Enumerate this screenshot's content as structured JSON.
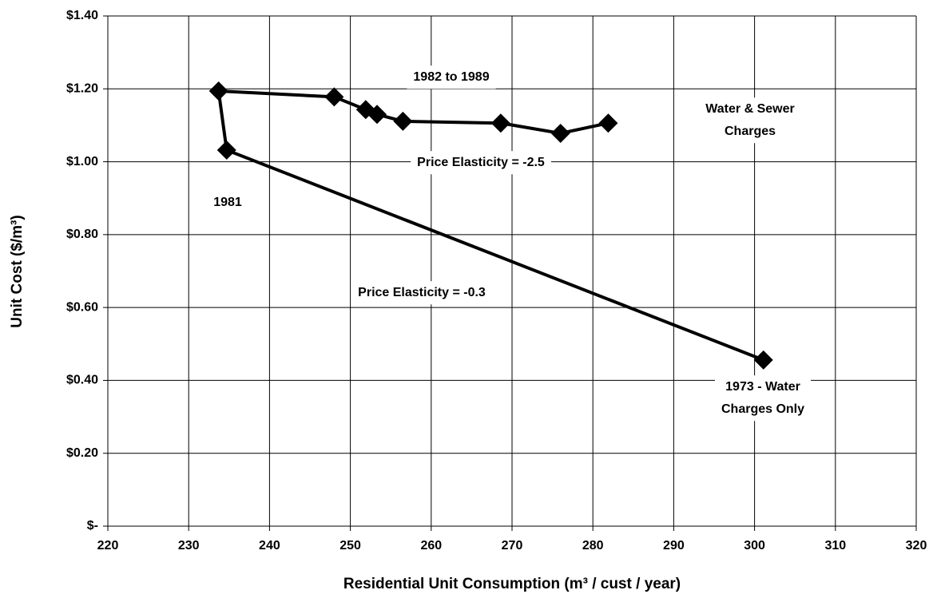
{
  "chart_data": {
    "type": "line",
    "x": [
      301.1,
      234.7,
      233.7,
      248.0,
      251.9,
      253.3,
      256.5,
      268.6,
      276.0,
      281.9
    ],
    "values": [
      0.456,
      1.032,
      1.194,
      1.178,
      1.143,
      1.13,
      1.111,
      1.106,
      1.078,
      1.106
    ],
    "color": "#000000",
    "marker": "diamond",
    "xlim": [
      220,
      320
    ],
    "xticks": [
      220,
      230,
      240,
      250,
      260,
      270,
      280,
      290,
      300,
      310,
      320
    ],
    "ylim": [
      0,
      1.4
    ],
    "yticks": [
      {
        "value": 0,
        "label": "$-"
      },
      {
        "value": 0.2,
        "label": "$0.20"
      },
      {
        "value": 0.4,
        "label": "$0.40"
      },
      {
        "value": 0.6,
        "label": "$0.60"
      },
      {
        "value": 0.8,
        "label": "$0.80"
      },
      {
        "value": 1.0,
        "label": "$1.00"
      },
      {
        "value": 1.2,
        "label": "$1.20"
      },
      {
        "value": 1.4,
        "label": "$1.40"
      }
    ],
    "grid": true,
    "xlabel": "Residential Unit Consumption (m³ / cust / year)",
    "ylabel": "Unit Cost ($/m³)",
    "annotations": [
      {
        "lines": [
          "1982 to 1989"
        ]
      },
      {
        "lines": [
          "Water & Sewer",
          "Charges"
        ]
      },
      {
        "lines": [
          "Price Elasticity = -2.5"
        ]
      },
      {
        "lines": [
          "1981"
        ]
      },
      {
        "lines": [
          "Price Elasticity = -0.3"
        ]
      },
      {
        "lines": [
          "1973 - Water",
          "Charges Only"
        ]
      }
    ]
  }
}
